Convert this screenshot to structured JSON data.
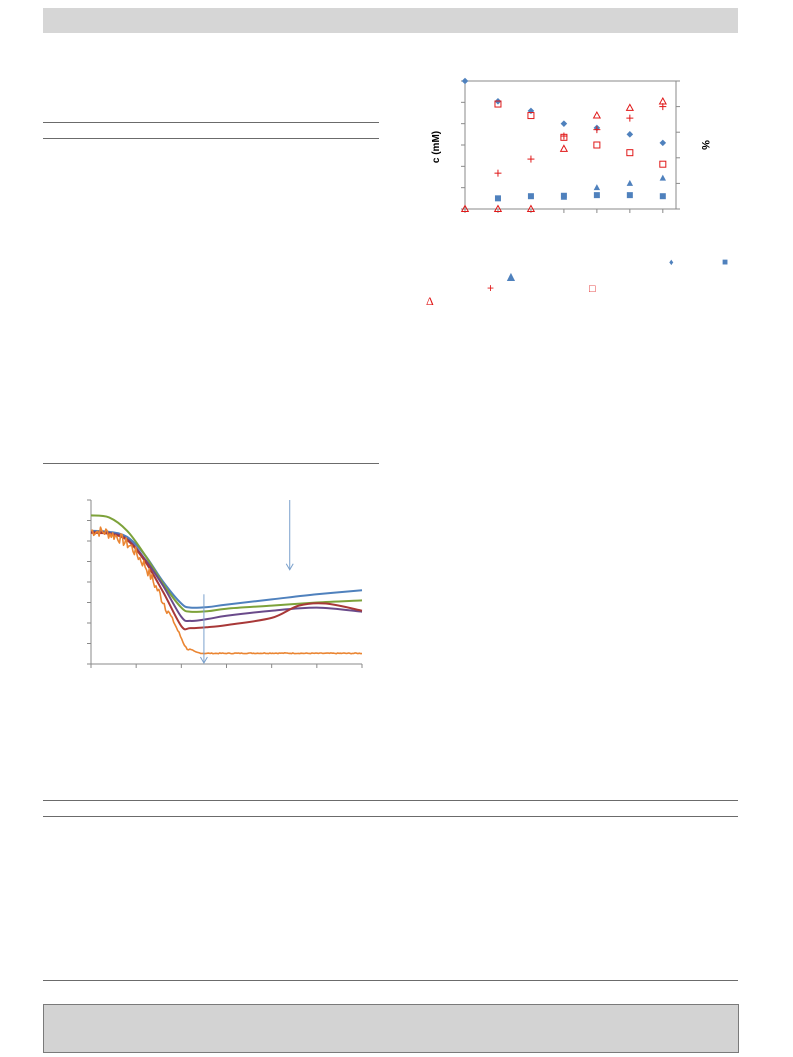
{
  "scatter_labels": {
    "left_axis": "c (mM)",
    "right_axis": "%"
  },
  "legend_symbols": [
    "♦",
    "■",
    "▲",
    "+",
    "□",
    "Δ"
  ],
  "colors": {
    "blue": "#4f81bd",
    "red": "#e01818",
    "green": "#7da23a",
    "purple": "#6a4a8a",
    "dark_red": "#a83838",
    "orange": "#ea8532",
    "arrow": "#7aa0cc"
  },
  "chart_data": [
    {
      "type": "scatter",
      "title": "",
      "xlabel": "",
      "ylabel": "c (mM)",
      "y2label": "%",
      "xlim": [
        0,
        6.4
      ],
      "ylim": [
        0,
        6
      ],
      "y2lim": [
        0,
        100
      ],
      "grid": false,
      "series": [
        {
          "axis": "left",
          "marker": "diamond",
          "color": "#4f81bd",
          "x": [
            0,
            1,
            2,
            3,
            4,
            5,
            6
          ],
          "y": [
            6.0,
            5.05,
            4.6,
            4.0,
            3.8,
            3.5,
            3.1
          ]
        },
        {
          "axis": "left",
          "marker": "square",
          "color": "#4f81bd",
          "x": [
            1,
            2,
            3,
            4,
            5,
            6
          ],
          "y": [
            0.5,
            0.6,
            0.62,
            0.65,
            0.65,
            0.6
          ]
        },
        {
          "axis": "left",
          "marker": "triangle",
          "color": "#4f81bd",
          "x": [
            3,
            4,
            5,
            6
          ],
          "y": [
            0.55,
            1.0,
            1.2,
            1.45
          ]
        },
        {
          "axis": "right",
          "marker": "plus",
          "color": "#e01818",
          "x": [
            1,
            2,
            3,
            4,
            5,
            6
          ],
          "y": [
            28,
            39,
            57,
            62,
            71,
            80
          ]
        },
        {
          "axis": "right",
          "marker": "open-square",
          "color": "#e01818",
          "x": [
            1,
            2,
            3,
            4,
            5,
            6
          ],
          "y": [
            82,
            73,
            56,
            50,
            44,
            35
          ]
        },
        {
          "axis": "right",
          "marker": "open-triangle",
          "color": "#e01818",
          "x": [
            0,
            1,
            2,
            3,
            4,
            5,
            6
          ],
          "y": [
            0,
            0,
            0,
            47,
            73,
            79,
            84
          ]
        }
      ]
    },
    {
      "type": "line",
      "title": "",
      "xlabel": "",
      "ylabel": "",
      "xlim": [
        0,
        6
      ],
      "ylim": [
        0,
        8
      ],
      "grid": false,
      "series": [
        {
          "color": "#4f81bd",
          "x": [
            0,
            0.4,
            0.8,
            1.2,
            1.6,
            2.0,
            2.2,
            2.6,
            3.0,
            4.0,
            5.0,
            6.0
          ],
          "y": [
            6.5,
            6.45,
            6.2,
            5.3,
            4.0,
            2.95,
            2.75,
            2.78,
            2.9,
            3.15,
            3.4,
            3.6
          ]
        },
        {
          "color": "#7da23a",
          "x": [
            0,
            0.4,
            0.8,
            1.2,
            1.6,
            2.0,
            2.2,
            2.6,
            3.0,
            4.0,
            5.0,
            6.0
          ],
          "y": [
            7.25,
            7.15,
            6.5,
            5.3,
            3.9,
            2.75,
            2.55,
            2.58,
            2.7,
            2.85,
            3.0,
            3.1
          ]
        },
        {
          "color": "#6a4a8a",
          "x": [
            0,
            0.4,
            0.8,
            1.2,
            1.6,
            2.0,
            2.2,
            2.6,
            3.0,
            4.0,
            5.0,
            6.0
          ],
          "y": [
            6.45,
            6.4,
            6.1,
            5.1,
            3.8,
            2.3,
            2.1,
            2.2,
            2.35,
            2.6,
            2.75,
            2.55
          ]
        },
        {
          "color": "#a83838",
          "x": [
            0,
            0.4,
            0.8,
            1.2,
            1.6,
            2.0,
            2.2,
            2.6,
            3.0,
            4.0,
            4.6,
            5.2,
            6.0
          ],
          "y": [
            6.4,
            6.35,
            6.05,
            5.0,
            3.5,
            1.85,
            1.75,
            1.8,
            1.9,
            2.25,
            2.85,
            2.95,
            2.6
          ]
        },
        {
          "color": "#ea8532",
          "noisy_until": 1.7,
          "x": [
            0,
            0.3,
            0.6,
            0.9,
            1.2,
            1.5,
            1.8,
            2.1,
            2.3,
            2.5,
            3.0,
            4.0,
            5.0,
            6.0
          ],
          "y": [
            6.5,
            6.45,
            6.2,
            5.7,
            4.8,
            3.5,
            2.2,
            0.8,
            0.55,
            0.52,
            0.52,
            0.53,
            0.52,
            0.52
          ]
        }
      ],
      "arrows": [
        {
          "x": 4.4,
          "y_from": 8.0,
          "y_to": 4.6
        },
        {
          "x": 2.5,
          "y_from": 3.4,
          "y_to": 0.05
        }
      ]
    }
  ]
}
